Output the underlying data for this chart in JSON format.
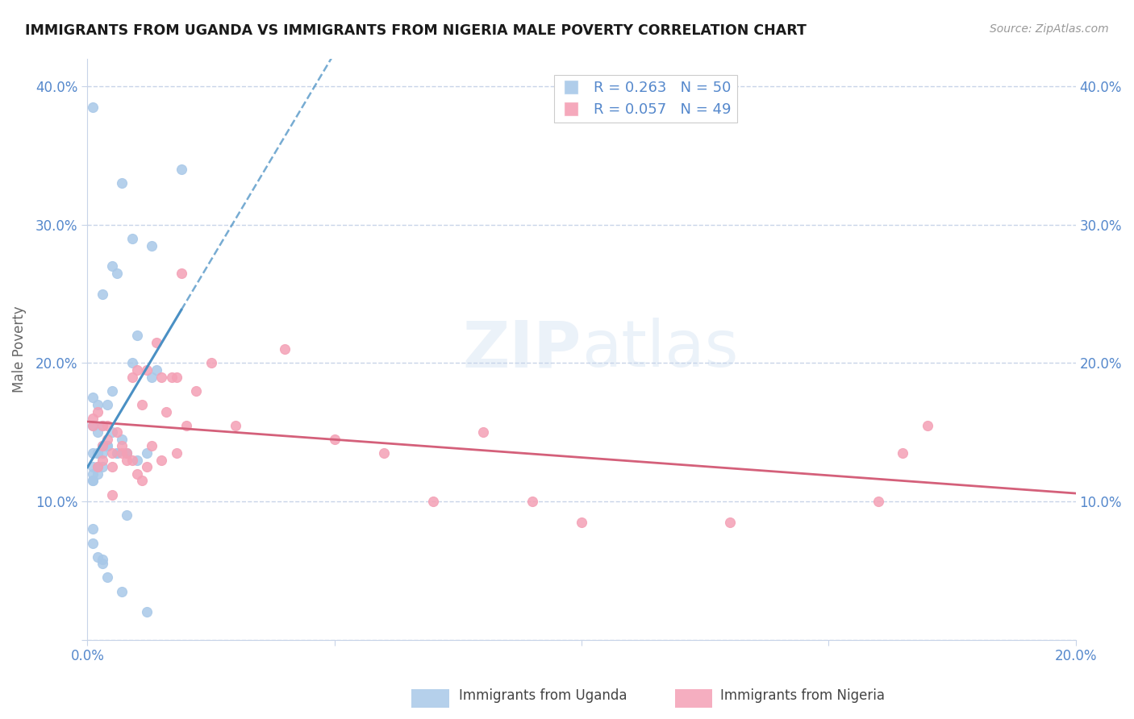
{
  "title": "IMMIGRANTS FROM UGANDA VS IMMIGRANTS FROM NIGERIA MALE POVERTY CORRELATION CHART",
  "source": "Source: ZipAtlas.com",
  "ylabel": "Male Poverty",
  "xlim": [
    0.0,
    0.2
  ],
  "ylim": [
    0.0,
    0.42
  ],
  "uganda_color": "#a8c8e8",
  "nigeria_color": "#f4a0b5",
  "uganda_R": 0.263,
  "uganda_N": 50,
  "nigeria_R": 0.057,
  "nigeria_N": 49,
  "trendline_uganda_color": "#4a90c4",
  "trendline_nigeria_color": "#d4607a",
  "grid_color": "#c8d4e8",
  "background_color": "#ffffff",
  "watermark": "ZIPatlas",
  "tick_color": "#5588cc",
  "uganda_x": [
    0.001,
    0.001,
    0.001,
    0.001,
    0.001,
    0.001,
    0.001,
    0.001,
    0.001,
    0.002,
    0.002,
    0.002,
    0.002,
    0.002,
    0.002,
    0.003,
    0.003,
    0.003,
    0.003,
    0.003,
    0.004,
    0.004,
    0.004,
    0.005,
    0.005,
    0.006,
    0.006,
    0.007,
    0.007,
    0.008,
    0.008,
    0.009,
    0.01,
    0.012,
    0.012,
    0.013,
    0.014,
    0.005,
    0.003,
    0.004,
    0.006,
    0.008,
    0.003,
    0.007,
    0.009,
    0.01,
    0.001,
    0.002,
    0.013,
    0.019
  ],
  "uganda_y": [
    0.385,
    0.175,
    0.155,
    0.135,
    0.125,
    0.115,
    0.115,
    0.08,
    0.07,
    0.17,
    0.15,
    0.135,
    0.135,
    0.125,
    0.06,
    0.155,
    0.135,
    0.14,
    0.125,
    0.055,
    0.17,
    0.14,
    0.045,
    0.15,
    0.18,
    0.135,
    0.265,
    0.33,
    0.145,
    0.135,
    0.09,
    0.29,
    0.22,
    0.135,
    0.02,
    0.285,
    0.195,
    0.27,
    0.25,
    0.14,
    0.135,
    0.135,
    0.058,
    0.035,
    0.2,
    0.13,
    0.12,
    0.12,
    0.19,
    0.34
  ],
  "nigeria_x": [
    0.001,
    0.001,
    0.002,
    0.002,
    0.003,
    0.003,
    0.003,
    0.004,
    0.004,
    0.005,
    0.005,
    0.005,
    0.006,
    0.007,
    0.007,
    0.008,
    0.008,
    0.009,
    0.009,
    0.01,
    0.01,
    0.011,
    0.011,
    0.012,
    0.012,
    0.013,
    0.014,
    0.015,
    0.015,
    0.016,
    0.017,
    0.018,
    0.018,
    0.019,
    0.02,
    0.022,
    0.025,
    0.03,
    0.04,
    0.05,
    0.06,
    0.07,
    0.08,
    0.09,
    0.1,
    0.13,
    0.16,
    0.165,
    0.17
  ],
  "nigeria_y": [
    0.16,
    0.155,
    0.165,
    0.125,
    0.14,
    0.13,
    0.155,
    0.155,
    0.145,
    0.135,
    0.125,
    0.105,
    0.15,
    0.14,
    0.135,
    0.135,
    0.13,
    0.19,
    0.13,
    0.195,
    0.12,
    0.17,
    0.115,
    0.195,
    0.125,
    0.14,
    0.215,
    0.19,
    0.13,
    0.165,
    0.19,
    0.19,
    0.135,
    0.265,
    0.155,
    0.18,
    0.2,
    0.155,
    0.21,
    0.145,
    0.135,
    0.1,
    0.15,
    0.1,
    0.085,
    0.085,
    0.1,
    0.135,
    0.155
  ]
}
